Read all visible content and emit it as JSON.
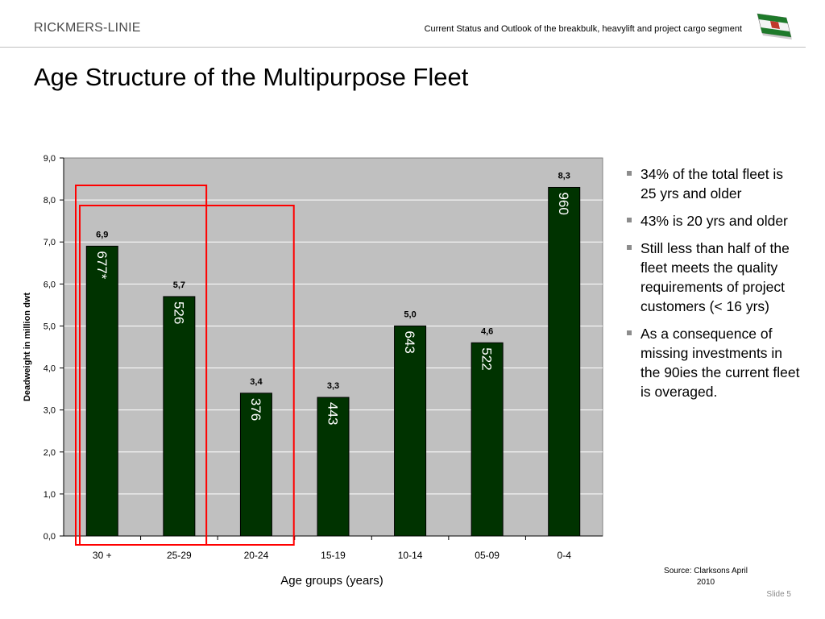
{
  "header": {
    "brand": "RICKMERS-LINIE",
    "subtitle": "Current Status and Outlook of the breakbulk, heavylift and project cargo segment"
  },
  "title": "Age Structure of the Multipurpose Fleet",
  "bullets": [
    "34% of the total fleet is 25 yrs and older",
    "43% is 20 yrs and older",
    "Still less than half of the fleet meets the quality requirements of project customers (< 16 yrs)",
    "As a consequence of missing investments in the 90ies the current fleet is overaged."
  ],
  "footer": {
    "source": "Source: Clarksons April 2010",
    "slide": "Slide 5"
  },
  "colors": {
    "bar": "#003300",
    "plot_background": "#c0c0c0",
    "highlight_box": "#ff0000"
  },
  "chart_data": {
    "type": "bar",
    "categories": [
      "30 +",
      "25-29",
      "20-24",
      "15-19",
      "10-14",
      "05-09",
      "0-4"
    ],
    "values": [
      6.9,
      5.7,
      3.4,
      3.3,
      5.0,
      4.6,
      8.3
    ],
    "data_labels": [
      "6,9",
      "5,7",
      "3,4",
      "3,3",
      "5,0",
      "4,6",
      "8,3"
    ],
    "vessel_counts": [
      "677*",
      "526",
      "376",
      "443",
      "643",
      "522",
      "960"
    ],
    "xlabel": "Age groups (years)",
    "ylabel": "Deadweight in million dwt",
    "ylim": [
      0,
      9
    ],
    "yticks": [
      "0,0",
      "1,0",
      "2,0",
      "3,0",
      "4,0",
      "5,0",
      "6,0",
      "7,0",
      "8,0",
      "9,0"
    ],
    "grid": true,
    "legend": "none",
    "highlight_groups": [
      {
        "name": "25 yrs and older",
        "categories": [
          "30 +",
          "25-29"
        ]
      },
      {
        "name": "20 yrs and older",
        "categories": [
          "30 +",
          "25-29",
          "20-24"
        ]
      }
    ]
  }
}
